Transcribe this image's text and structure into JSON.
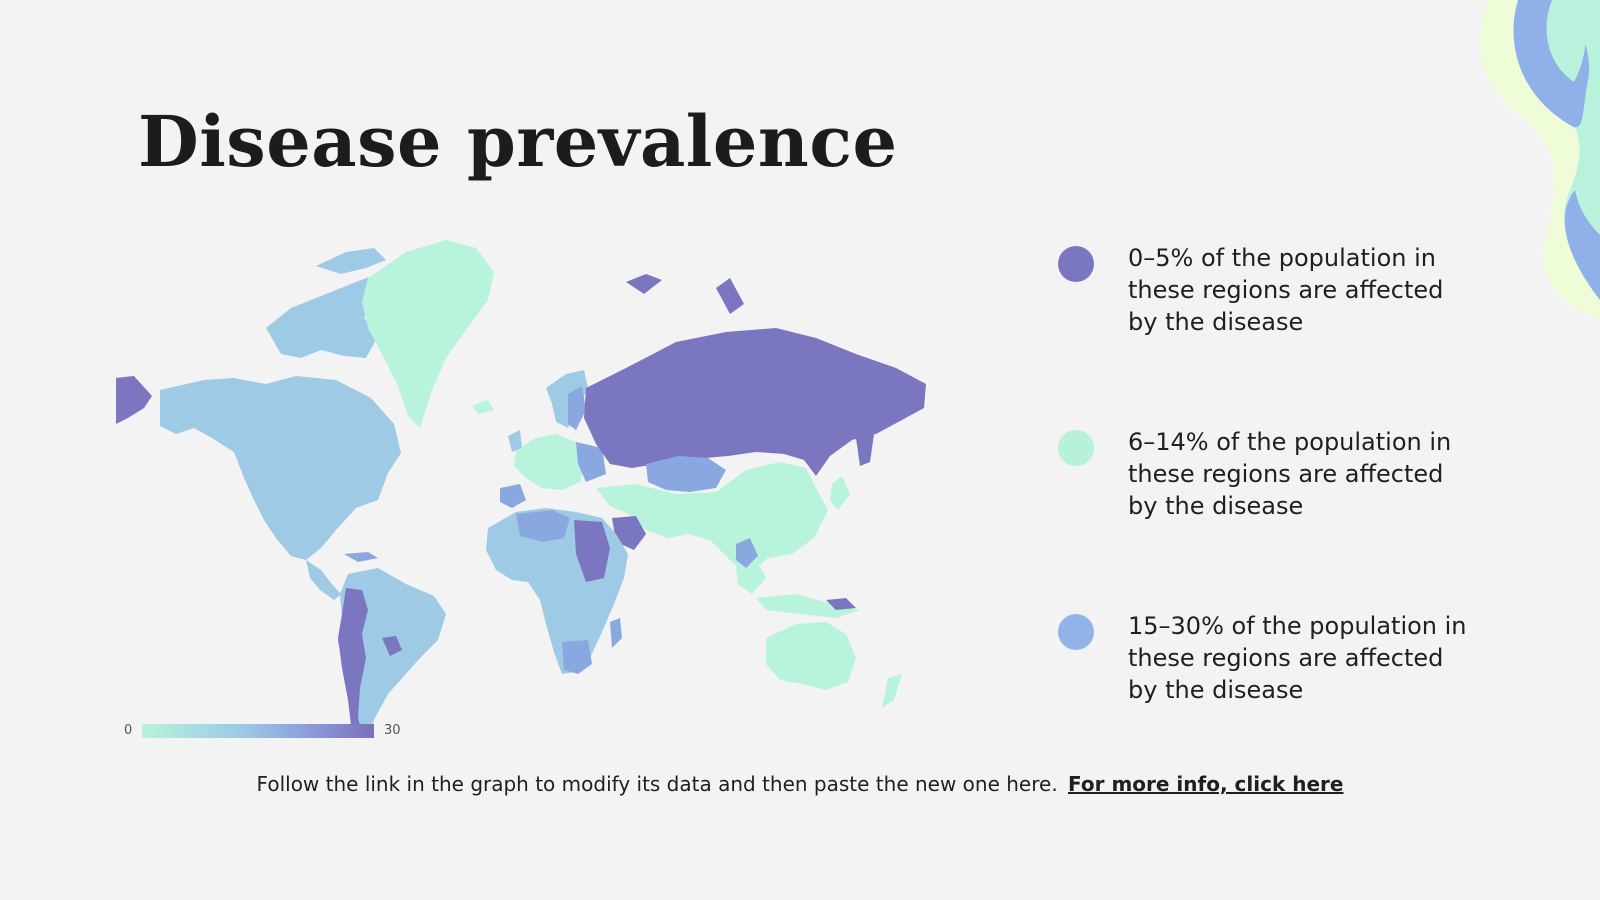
{
  "slide": {
    "title": "Disease prevalence"
  },
  "legend": {
    "items": [
      {
        "label": "0–5% of the population in these regions are affected by the disease",
        "color": "#7b76c0"
      },
      {
        "label": "6–14% of the population in these regions are affected by the disease",
        "color": "#b6f2da"
      },
      {
        "label": "15–30% of the population in these regions are affected by the disease",
        "color": "#92b4e8"
      }
    ]
  },
  "map": {
    "scale_min": "0",
    "scale_max": "30",
    "colors": {
      "low": "#b8f3dc",
      "mid": "#9fcce6",
      "high": "#7b76c0",
      "land_light_blue": "#9fcae5",
      "land_mint": "#b8f3dc",
      "land_purple": "#7b76c0",
      "land_periwinkle": "#8aa8e0"
    },
    "regions": {
      "north_america": "15–30%",
      "greenland": "6–14%",
      "south_america": "15–30%",
      "russia": "0–5%",
      "asia": "6–14%",
      "australia": "6–14%",
      "africa": "15–30%"
    }
  },
  "footer": {
    "text": "Follow the link in the graph to modify its data and then paste the new one here.",
    "link_text": "For more info, click here"
  }
}
